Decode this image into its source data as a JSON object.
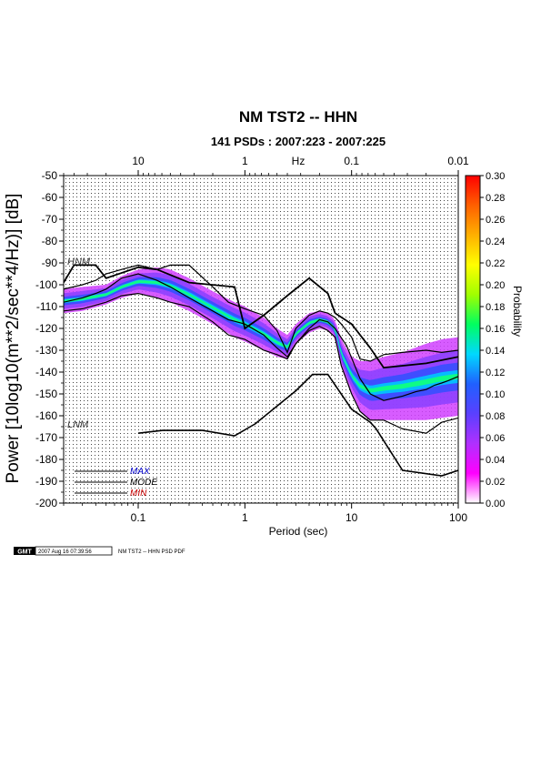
{
  "chart_data": {
    "type": "heatmap",
    "title": "NM TST2 -- HHN",
    "subtitle": "141 PSDs : 2007:223 - 2007:225",
    "xlabel": "Period (sec)",
    "ylabel": "Power [10log10(m**2/sec**4/Hz)] [dB]",
    "top_axis_label": "Hz",
    "x_scale": "log",
    "xlim": [
      0.02,
      100
    ],
    "ylim": [
      -200,
      -50
    ],
    "grid": true,
    "x_ticks": [
      "0.1",
      "1",
      "10",
      "100"
    ],
    "top_ticks": [
      "10",
      "1",
      "0.1",
      "0.01"
    ],
    "y_ticks": [
      "-50",
      "-60",
      "-70",
      "-80",
      "-90",
      "-100",
      "-110",
      "-120",
      "-130",
      "-140",
      "-150",
      "-160",
      "-170",
      "-180",
      "-190",
      "-200"
    ],
    "colorbar": {
      "label": "Probability",
      "range": [
        0,
        0.3
      ],
      "ticks": [
        "0.30",
        "0.28",
        "0.26",
        "0.24",
        "0.22",
        "0.20",
        "0.18",
        "0.16",
        "0.14",
        "0.12",
        "0.10",
        "0.08",
        "0.06",
        "0.04",
        "0.02",
        "0.00"
      ],
      "colors": [
        "#ffffff",
        "#ff00ff",
        "#b030ff",
        "#5a40ff",
        "#2060ff",
        "#00d8ff",
        "#00ff60",
        "#a0ff00",
        "#ffff00",
        "#ffb000",
        "#ff6000",
        "#ff0000"
      ]
    },
    "annotations": [
      "HNM",
      "LNM"
    ],
    "legend": [
      {
        "name": "MAX",
        "color": "#0000cc"
      },
      {
        "name": "MODE",
        "color": "#000000"
      },
      {
        "name": "MIN",
        "color": "#cc0000"
      }
    ],
    "pdf_band": {
      "period": [
        0.02,
        0.03,
        0.05,
        0.07,
        0.1,
        0.15,
        0.2,
        0.3,
        0.5,
        0.8,
        1.0,
        1.5,
        2.0,
        2.5,
        3.0,
        4.0,
        5.0,
        6.0,
        7.0,
        8.0,
        10.0,
        12.0,
        15.0,
        20.0,
        30.0,
        50.0,
        70.0,
        100.0
      ],
      "upper": [
        -102,
        -101,
        -100,
        -96,
        -93,
        -92,
        -93,
        -97,
        -103,
        -108,
        -110,
        -115,
        -120,
        -123,
        -118,
        -113,
        -112,
        -113,
        -116,
        -125,
        -133,
        -135,
        -135,
        -133,
        -131,
        -127,
        -125,
        -124
      ],
      "lower": [
        -113,
        -112,
        -109,
        -106,
        -104,
        -106,
        -108,
        -112,
        -118,
        -124,
        -126,
        -130,
        -133,
        -134,
        -127,
        -122,
        -120,
        -121,
        -124,
        -138,
        -150,
        -158,
        -162,
        -162,
        -162,
        -162,
        -161,
        -160
      ]
    },
    "series": [
      {
        "name": "MODE",
        "period": [
          0.02,
          0.03,
          0.04,
          0.05,
          0.07,
          0.1,
          0.15,
          0.2,
          0.3,
          0.5,
          0.7,
          1.0,
          1.5,
          2.0,
          2.5,
          3.0,
          4.0,
          5.0,
          6.0,
          7.0,
          9.0,
          12.0,
          15.0,
          20.0,
          30.0,
          40.0,
          50.0,
          60.0,
          70.0,
          80.0,
          100.0
        ],
        "values": [
          -108,
          -106,
          -104,
          -102,
          -97,
          -95,
          -98,
          -101,
          -106,
          -112,
          -116,
          -118,
          -123,
          -129,
          -133,
          -127,
          -120,
          -116,
          -117,
          -120,
          -128,
          -143,
          -150,
          -153,
          -151,
          -149,
          -148,
          -146,
          -145,
          -144,
          -142
        ]
      },
      {
        "name": "MAX",
        "period": [
          0.02,
          0.03,
          0.04,
          0.05,
          0.07,
          0.1,
          0.15,
          0.2,
          0.3,
          0.5,
          0.7,
          1.0,
          1.5,
          2.0,
          2.5,
          3.0,
          4.0,
          5.0,
          6.0,
          7.0,
          8.0,
          10.0,
          12.0,
          15.0,
          20.0,
          30.0,
          50.0,
          70.0,
          100.0
        ],
        "values": [
          -102,
          -100,
          -98,
          -95,
          -93,
          -91,
          -93,
          -91,
          -91,
          -101,
          -108,
          -111,
          -114,
          -121,
          -131,
          -120,
          -114,
          -112,
          -113,
          -115,
          -118,
          -124,
          -134,
          -135,
          -132,
          -131,
          -130,
          -131,
          -130
        ]
      },
      {
        "name": "MIN",
        "period": [
          0.02,
          0.03,
          0.05,
          0.07,
          0.1,
          0.15,
          0.2,
          0.3,
          0.5,
          0.7,
          1.0,
          1.5,
          2.0,
          2.5,
          3.0,
          4.0,
          5.0,
          6.0,
          7.0,
          8.0,
          10.0,
          12.0,
          15.0,
          20.0,
          30.0,
          50.0,
          70.0,
          100.0
        ],
        "values": [
          -112,
          -111,
          -108,
          -105,
          -104,
          -106,
          -108,
          -110,
          -117,
          -123,
          -125,
          -130,
          -132,
          -134,
          -127,
          -121,
          -119,
          -121,
          -124,
          -137,
          -150,
          -158,
          -162,
          -162,
          -166,
          -168,
          -163,
          -161
        ]
      },
      {
        "name": "HNM",
        "period": [
          0.02,
          0.025,
          0.04,
          0.05,
          0.1,
          0.15,
          0.3,
          0.8,
          1.0,
          1.5,
          2.5,
          4.0,
          6.0,
          7.0,
          10.0,
          15.0,
          20.0,
          50.0,
          100.0
        ],
        "values": [
          -99,
          -91,
          -91,
          -97,
          -92,
          -93,
          -99,
          -101,
          -120,
          -114,
          -105,
          -97,
          -104,
          -113,
          -118,
          -129,
          -138,
          -136,
          -133
        ]
      },
      {
        "name": "LNM",
        "period": [
          0.1,
          0.17,
          0.4,
          0.8,
          1.25,
          3.0,
          4.3,
          6.0,
          10.0,
          15.0,
          17.0,
          30.0,
          70.0,
          100.0
        ],
        "values": [
          -168,
          -166.7,
          -166.7,
          -169.2,
          -163.7,
          -148.6,
          -141.1,
          -141.1,
          -157.0,
          -163.0,
          -166.0,
          -185.0,
          -187.5,
          -185.0
        ]
      }
    ],
    "footer": {
      "logo_text": "GMT",
      "timestamp": "2007 Aug 16 07:39:56",
      "caption": "NM TST2 -- HHN PSD PDF"
    }
  }
}
